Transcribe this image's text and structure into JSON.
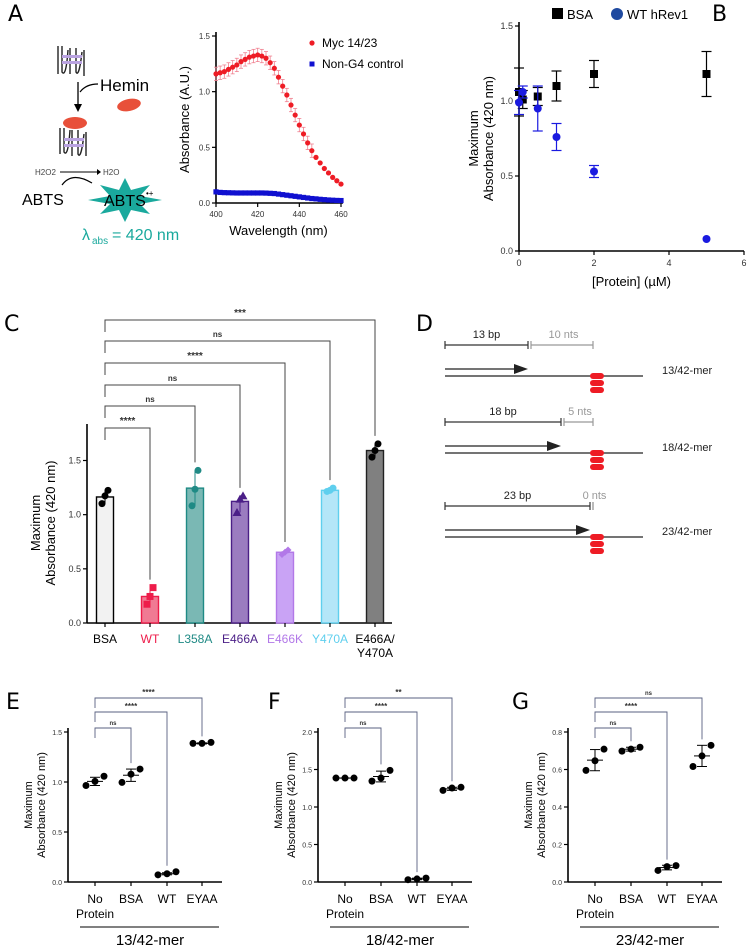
{
  "panels": {
    "A": {
      "letter": "A"
    },
    "B": {
      "letter": "B"
    },
    "C": {
      "letter": "C"
    },
    "D": {
      "letter": "D"
    },
    "E": {
      "letter": "E"
    },
    "F": {
      "letter": "F"
    },
    "G": {
      "letter": "G"
    }
  },
  "schematic_A": {
    "hemin_label": "Hemin",
    "h2o2_label": "H2O2",
    "h2o_label": "H2O",
    "abts_label": "ABTS",
    "abts_radical_label": "ABTS",
    "radical_mark": "•+",
    "lambda_label": "λ",
    "lambda_sub": "abs",
    "lambda_value": "= 420 nm",
    "colors": {
      "teal": "#1aa99d",
      "hemin": "#e8503a"
    }
  },
  "schematic_D": {
    "constructs": [
      {
        "bp_label": "13 bp",
        "nts_label": "10 nts",
        "name": "13/42-mer",
        "bp": 13,
        "nts": 10
      },
      {
        "bp_label": "18 bp",
        "nts_label": "5 nts",
        "name": "18/42-mer",
        "bp": 18,
        "nts": 5
      },
      {
        "bp_label": "23 bp",
        "nts_label": "0 nts",
        "name": "23/42-mer",
        "bp": 23,
        "nts": 0
      }
    ],
    "g4_color": "#ee1c25"
  },
  "chart_data": [
    {
      "id": "A",
      "type": "scatter",
      "title": "",
      "xlabel": "Wavelength (nm)",
      "ylabel": "Absorbance (A.U.)",
      "xlim": [
        400,
        460
      ],
      "ylim": [
        0,
        1.5
      ],
      "xticks": [
        "400",
        "420",
        "440",
        "460"
      ],
      "yticks": [
        "0.0",
        "0.5",
        "1.0",
        "1.5"
      ],
      "legend_position": "top-right",
      "series": [
        {
          "name": "Myc 14/23",
          "color": "#ee1c25",
          "marker": "circle",
          "x": [
            400,
            402,
            404,
            406,
            408,
            410,
            412,
            414,
            416,
            418,
            420,
            422,
            424,
            426,
            428,
            430,
            432,
            434,
            436,
            438,
            440,
            442,
            444,
            446,
            448,
            450,
            452,
            454,
            456,
            458,
            460
          ],
          "y": [
            1.16,
            1.17,
            1.18,
            1.2,
            1.22,
            1.24,
            1.27,
            1.29,
            1.31,
            1.32,
            1.33,
            1.32,
            1.3,
            1.26,
            1.21,
            1.13,
            1.05,
            0.97,
            0.88,
            0.79,
            0.7,
            0.62,
            0.54,
            0.47,
            0.41,
            0.36,
            0.31,
            0.27,
            0.23,
            0.2,
            0.17
          ],
          "err": 0.06
        },
        {
          "name": "Non-G4 control",
          "color": "#1010d0",
          "marker": "square",
          "x": [
            400,
            402,
            404,
            406,
            408,
            410,
            412,
            414,
            416,
            418,
            420,
            422,
            424,
            426,
            428,
            430,
            432,
            434,
            436,
            438,
            440,
            442,
            444,
            446,
            448,
            450,
            452,
            454,
            456,
            458,
            460
          ],
          "y": [
            0.1,
            0.095,
            0.093,
            0.092,
            0.091,
            0.09,
            0.09,
            0.09,
            0.09,
            0.09,
            0.09,
            0.09,
            0.089,
            0.087,
            0.085,
            0.08,
            0.075,
            0.07,
            0.065,
            0.06,
            0.055,
            0.05,
            0.045,
            0.04,
            0.037,
            0.033,
            0.03,
            0.027,
            0.025,
            0.023,
            0.022
          ]
        }
      ]
    },
    {
      "id": "B",
      "type": "scatter",
      "xlabel": "[Protein] (µM)",
      "ylabel_line1": "Maximum",
      "ylabel_line2": "Absorbance (420 nm)",
      "xlim": [
        0,
        6
      ],
      "ylim": [
        0,
        1.5
      ],
      "xticks": [
        "0",
        "2",
        "4",
        "6"
      ],
      "yticks": [
        "0.0",
        "0.5",
        "1.0",
        "1.5"
      ],
      "legend_position": "top",
      "series": [
        {
          "name": "BSA",
          "color": "#000000",
          "marker": "square",
          "x": [
            0,
            0.1,
            0.5,
            1,
            2,
            5
          ],
          "y": [
            1.06,
            1.01,
            1.03,
            1.1,
            1.18,
            1.18
          ],
          "err": [
            0.16,
            0.06,
            0.06,
            0.1,
            0.09,
            0.15
          ]
        },
        {
          "name": "WT hRev1",
          "color": "#1a1ae0",
          "marker": "circle",
          "x": [
            0,
            0.1,
            0.5,
            1,
            2,
            5
          ],
          "y": [
            0.99,
            1.06,
            0.95,
            0.76,
            0.53,
            0.08
          ],
          "err": [
            0.08,
            0.04,
            0.15,
            0.09,
            0.04,
            0.0
          ]
        }
      ]
    },
    {
      "id": "C",
      "type": "bar",
      "ylabel_line1": "Maximum",
      "ylabel_line2": "Absorbance (420 nm)",
      "ylim": [
        0,
        1.8
      ],
      "yticks": [
        "0.0",
        "0.5",
        "1.0",
        "1.5"
      ],
      "categories": [
        "BSA",
        "WT",
        "L358A",
        "E466A",
        "E466K",
        "Y470A",
        "E466A/\nY470A"
      ],
      "category_lines": [
        [
          "BSA"
        ],
        [
          "WT"
        ],
        [
          "L358A"
        ],
        [
          "E466A"
        ],
        [
          "E466K"
        ],
        [
          "Y470A"
        ],
        [
          "E466A/",
          "Y470A"
        ]
      ],
      "values": [
        1.14,
        0.24,
        1.22,
        1.1,
        0.64,
        1.2,
        1.56
      ],
      "points": [
        [
          1.08,
          1.15,
          1.2
        ],
        [
          0.17,
          0.24,
          0.32
        ],
        [
          1.06,
          1.21,
          1.38
        ],
        [
          1.0,
          1.12,
          1.15
        ],
        [
          0.62,
          0.64,
          0.66
        ],
        [
          1.19,
          1.2,
          1.22
        ],
        [
          1.5,
          1.56,
          1.62
        ]
      ],
      "markers": [
        "circle",
        "square",
        "circle",
        "triangle",
        "diamond",
        "circle",
        "circle"
      ],
      "label_colors": [
        "#000000",
        "#ee1c4a",
        "#1f8a85",
        "#4b1f87",
        "#b278e8",
        "#5fcfee",
        "#000000"
      ],
      "bar_fill": [
        "#f2f2f2",
        "#f07a93",
        "#7ab8b4",
        "#9b7cc0",
        "#c9a3f5",
        "#b4e6f8",
        "#808080"
      ],
      "bar_stroke": [
        "#000000",
        "#ee1c4a",
        "#1f8a85",
        "#4b1f87",
        "#b278e8",
        "#5fcfee",
        "#222222"
      ],
      "point_colors": [
        "#000000",
        "#ee1c4a",
        "#1f8a85",
        "#4b1f87",
        "#b278e8",
        "#5fcfee",
        "#000000"
      ],
      "comparisons": [
        {
          "to": "WT",
          "label": "****"
        },
        {
          "to": "L358A",
          "label": "ns"
        },
        {
          "to": "E466A",
          "label": "ns"
        },
        {
          "to": "E466K",
          "label": "****"
        },
        {
          "to": "Y470A",
          "label": "ns"
        },
        {
          "to": "E466A/Y470A",
          "label": "***"
        }
      ]
    },
    {
      "id": "E",
      "type": "scatter",
      "ylabel_line1": "Maximum",
      "ylabel_line2": "Absorbance (420 nm)",
      "ylim": [
        0,
        1.5
      ],
      "yticks": [
        "0.0",
        "0.5",
        "1.0",
        "1.5"
      ],
      "categories": [
        "No\nProtein",
        "BSA",
        "WT",
        "EYAA"
      ],
      "category_lines": [
        [
          "No",
          "Protein"
        ],
        [
          "BSA"
        ],
        [
          "WT"
        ],
        [
          "EYAA"
        ]
      ],
      "group_label": "13/42-mer",
      "points": [
        [
          0.94,
          0.98,
          1.03
        ],
        [
          0.97,
          1.05,
          1.1
        ],
        [
          0.07,
          0.08,
          0.1
        ],
        [
          1.35,
          1.35,
          1.36
        ]
      ],
      "means": [
        0.98,
        1.04,
        0.08,
        1.35
      ],
      "sd": [
        0.04,
        0.06,
        0.01,
        0.005
      ],
      "comparisons": [
        {
          "to": "BSA",
          "label": "ns"
        },
        {
          "to": "WT",
          "label": "****"
        },
        {
          "to": "EYAA",
          "label": "****"
        }
      ]
    },
    {
      "id": "F",
      "type": "scatter",
      "ylabel_line1": "Maximum",
      "ylabel_line2": "Absorbance (420 nm)",
      "ylim": [
        0,
        2.0
      ],
      "yticks": [
        "0.0",
        "0.5",
        "1.0",
        "1.5",
        "2.0"
      ],
      "categories": [
        "No\nProtein",
        "BSA",
        "WT",
        "EYAA"
      ],
      "category_lines": [
        [
          "No",
          "Protein"
        ],
        [
          "BSA"
        ],
        [
          "WT"
        ],
        [
          "EYAA"
        ]
      ],
      "group_label": "18/42-mer",
      "points": [
        [
          1.35,
          1.35,
          1.35
        ],
        [
          1.31,
          1.35,
          1.45
        ],
        [
          0.03,
          0.04,
          0.05
        ],
        [
          1.19,
          1.22,
          1.23
        ]
      ],
      "means": [
        1.35,
        1.37,
        0.04,
        1.21
      ],
      "sd": [
        0.0,
        0.07,
        0.01,
        0.02
      ],
      "comparisons": [
        {
          "to": "BSA",
          "label": "ns"
        },
        {
          "to": "WT",
          "label": "****"
        },
        {
          "to": "EYAA",
          "label": "**"
        }
      ]
    },
    {
      "id": "G",
      "type": "scatter",
      "ylabel_line1": "Maximum",
      "ylabel_line2": "Absorbance (420 nm)",
      "ylim": [
        0,
        0.8
      ],
      "yticks": [
        "0.0",
        "0.2",
        "0.4",
        "0.6",
        "0.8"
      ],
      "categories": [
        "No\nProtein",
        "BSA",
        "WT",
        "EYAA"
      ],
      "category_lines": [
        [
          "No",
          "Protein"
        ],
        [
          "BSA"
        ],
        [
          "WT"
        ],
        [
          "EYAA"
        ]
      ],
      "group_label": "23/42-mer",
      "points": [
        [
          0.58,
          0.63,
          0.69
        ],
        [
          0.68,
          0.69,
          0.7
        ],
        [
          0.06,
          0.08,
          0.085
        ],
        [
          0.6,
          0.655,
          0.71
        ]
      ],
      "means": [
        0.633,
        0.69,
        0.075,
        0.655
      ],
      "sd": [
        0.055,
        0.01,
        0.012,
        0.055
      ],
      "comparisons": [
        {
          "to": "BSA",
          "label": "ns"
        },
        {
          "to": "WT",
          "label": "****"
        },
        {
          "to": "EYAA",
          "label": "ns"
        }
      ]
    }
  ]
}
